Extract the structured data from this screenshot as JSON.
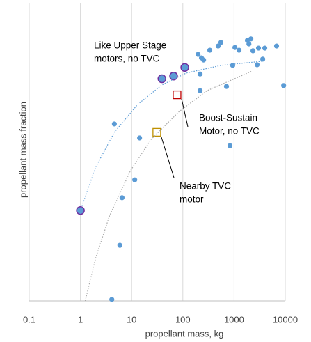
{
  "chart_data": {
    "type": "scatter",
    "x_label": "propellant mass, kg",
    "y_label": "propellant mass fraction",
    "log_x": true,
    "xlim": [
      0.1,
      10000
    ],
    "xticks": [
      0.1,
      1,
      10,
      100,
      1000,
      10000
    ],
    "ylim": [
      0,
      1
    ],
    "grid": true,
    "series": [
      {
        "color": "#5b9bd5",
        "marker": "circle",
        "x": [
          4.6,
          14.3,
          11.5,
          6.5,
          5.9,
          4.1,
          198,
          231,
          254,
          217,
          217,
          336,
          489,
          553,
          711,
          832,
          940,
          1040,
          1250,
          1820,
          2130,
          1950,
          2340,
          3000,
          3980,
          3630,
          2820,
          6760,
          9300
        ],
        "values": [
          0.595,
          0.548,
          0.407,
          0.347,
          0.187,
          0.005,
          0.829,
          0.817,
          0.81,
          0.763,
          0.707,
          0.843,
          0.857,
          0.869,
          0.721,
          0.522,
          0.792,
          0.852,
          0.843,
          0.876,
          0.881,
          0.864,
          0.841,
          0.85,
          0.85,
          0.813,
          0.794,
          0.857,
          0.724
        ]
      },
      {
        "color": "#5b9bd5",
        "edge": "#7030a0",
        "marker": "big-circle",
        "x": [
          1,
          39,
          66,
          109
        ],
        "values": [
          0.304,
          0.747,
          0.756,
          0.785
        ]
      },
      {
        "color": "#c00000",
        "marker": "square",
        "x": [
          77
        ],
        "values": [
          0.693
        ]
      },
      {
        "color": "#bf9000",
        "marker": "square",
        "x": [
          31
        ],
        "values": [
          0.567
        ]
      },
      {
        "color": "#5b9bd5",
        "marker": "dotted-line",
        "x": [
          1,
          1.99,
          4.6,
          13,
          39,
          116,
          556,
          3630
        ],
        "values": [
          0.304,
          0.45,
          0.567,
          0.66,
          0.726,
          0.766,
          0.792,
          0.806
        ]
      },
      {
        "color": "#a6a6a6",
        "marker": "dotted-line",
        "x": [
          1.24,
          1.99,
          3.7,
          9.5,
          24,
          85,
          297,
          2270
        ],
        "values": [
          0,
          0.145,
          0.286,
          0.438,
          0.543,
          0.637,
          0.707,
          0.773
        ]
      }
    ],
    "annotations": [
      {
        "lines": [
          "Like Upper Stage",
          "motors, no TVC"
        ]
      },
      {
        "lines": [
          "Boost-Sustain",
          "Motor, no TVC"
        ]
      },
      {
        "lines": [
          "Nearby TVC",
          "motor"
        ]
      }
    ]
  }
}
